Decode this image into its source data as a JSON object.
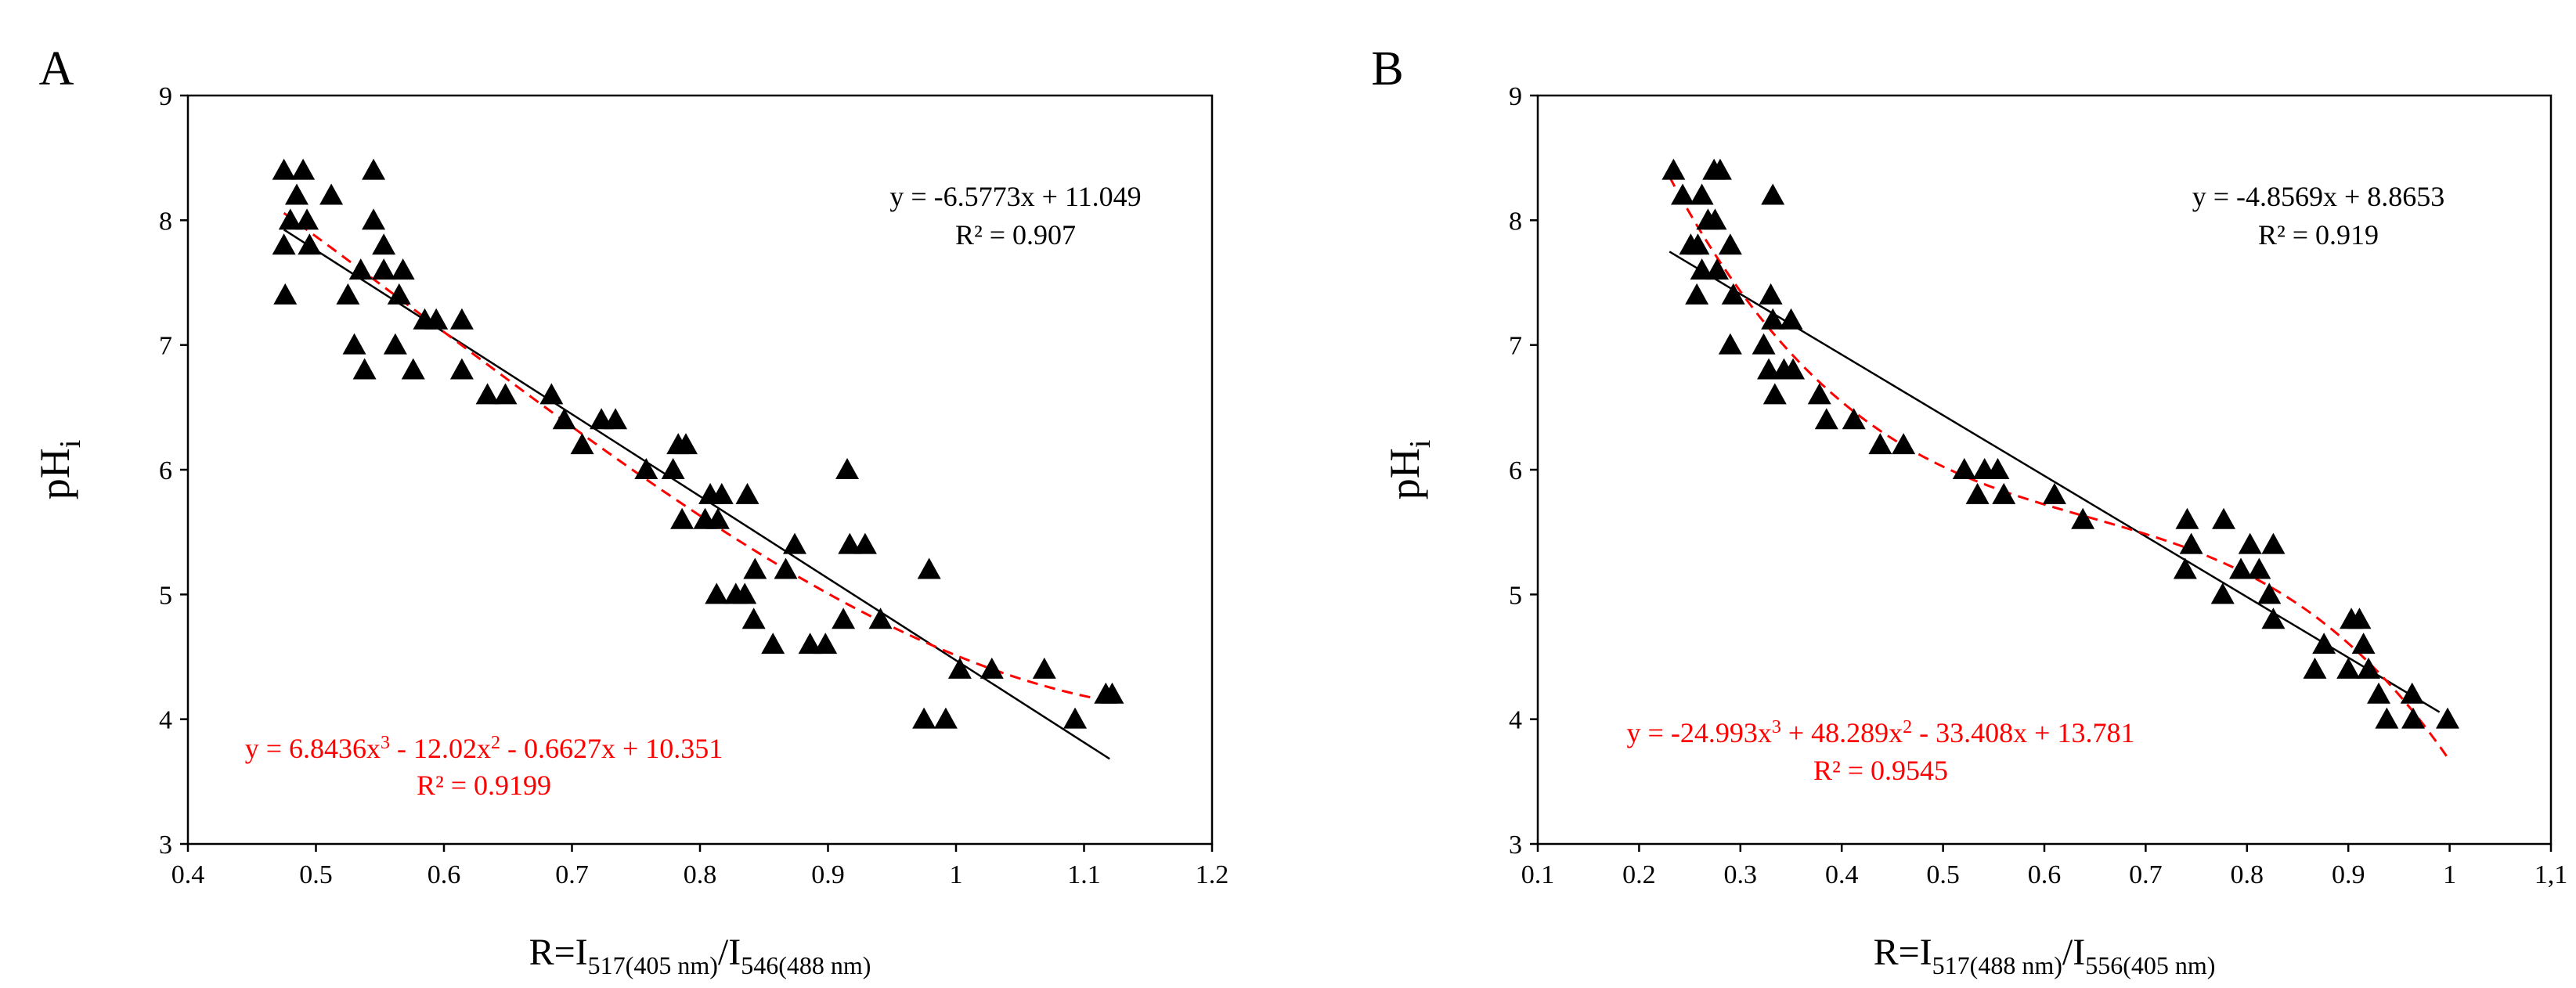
{
  "chart_data": [
    {
      "type": "scatter",
      "panel_label": "A",
      "ylabel": "pH",
      "ylabel_sub": "i",
      "xlabel_parts": [
        "R=I",
        "517(405 nm)",
        "/I",
        "546(488 nm)"
      ],
      "xlim": [
        0.4,
        1.2
      ],
      "ylim": [
        3,
        9
      ],
      "x_ticks": [
        "0.4",
        "0.5",
        "0.6",
        "0.7",
        "0.8",
        "0.9",
        "1",
        "1.1",
        "1.2"
      ],
      "y_ticks": [
        "3",
        "4",
        "5",
        "6",
        "7",
        "8",
        "9"
      ],
      "points": [
        [
          0.475,
          8.4
        ],
        [
          0.49,
          8.4
        ],
        [
          0.545,
          8.4
        ],
        [
          0.485,
          8.2
        ],
        [
          0.512,
          8.2
        ],
        [
          0.48,
          8.0
        ],
        [
          0.493,
          8.0
        ],
        [
          0.545,
          8.0
        ],
        [
          0.475,
          7.8
        ],
        [
          0.495,
          7.8
        ],
        [
          0.553,
          7.8
        ],
        [
          0.535,
          7.6
        ],
        [
          0.553,
          7.6
        ],
        [
          0.568,
          7.6
        ],
        [
          0.476,
          7.4
        ],
        [
          0.525,
          7.4
        ],
        [
          0.565,
          7.4
        ],
        [
          0.585,
          7.2
        ],
        [
          0.594,
          7.2
        ],
        [
          0.614,
          7.2
        ],
        [
          0.53,
          7.0
        ],
        [
          0.562,
          7.0
        ],
        [
          0.538,
          6.8
        ],
        [
          0.576,
          6.8
        ],
        [
          0.614,
          6.8
        ],
        [
          0.634,
          6.6
        ],
        [
          0.648,
          6.6
        ],
        [
          0.684,
          6.6
        ],
        [
          0.694,
          6.4
        ],
        [
          0.723,
          6.4
        ],
        [
          0.734,
          6.4
        ],
        [
          0.708,
          6.2
        ],
        [
          0.783,
          6.2
        ],
        [
          0.789,
          6.2
        ],
        [
          0.758,
          6.0
        ],
        [
          0.779,
          6.0
        ],
        [
          0.915,
          6.0
        ],
        [
          0.808,
          5.8
        ],
        [
          0.817,
          5.8
        ],
        [
          0.837,
          5.8
        ],
        [
          0.786,
          5.6
        ],
        [
          0.804,
          5.6
        ],
        [
          0.814,
          5.6
        ],
        [
          0.874,
          5.4
        ],
        [
          0.917,
          5.4
        ],
        [
          0.929,
          5.4
        ],
        [
          0.867,
          5.2
        ],
        [
          0.843,
          5.2
        ],
        [
          0.979,
          5.2
        ],
        [
          0.813,
          5.0
        ],
        [
          0.828,
          5.0
        ],
        [
          0.835,
          5.0
        ],
        [
          0.842,
          4.8
        ],
        [
          0.912,
          4.8
        ],
        [
          0.941,
          4.8
        ],
        [
          0.857,
          4.6
        ],
        [
          0.886,
          4.6
        ],
        [
          0.898,
          4.6
        ],
        [
          1.003,
          4.4
        ],
        [
          1.028,
          4.4
        ],
        [
          1.069,
          4.4
        ],
        [
          1.117,
          4.2
        ],
        [
          1.122,
          4.2
        ],
        [
          0.975,
          4.0
        ],
        [
          0.992,
          4.0
        ],
        [
          1.093,
          4.0
        ]
      ],
      "linear_fit": {
        "slope": -6.5773,
        "intercept": 11.049,
        "x_range": [
          0.475,
          1.12
        ],
        "equation": "y = -6.5773x + 11.049",
        "r2_label": "R² = 0.907",
        "color": "#000000"
      },
      "cubic_fit": {
        "coefficients": [
          6.8436,
          -12.02,
          -0.6627,
          10.351
        ],
        "x_range": [
          0.475,
          1.12
        ],
        "equation_parts": [
          "y = 6.8436x",
          "3",
          " - 12.02x",
          "2",
          " - 0.6627x + 10.351"
        ],
        "r2_label": "R² = 0.9199",
        "color": "#ff0000"
      }
    },
    {
      "type": "scatter",
      "panel_label": "B",
      "ylabel": "pH",
      "ylabel_sub": "i",
      "xlabel_parts": [
        "R=I",
        "517(488 nm)",
        "/I",
        "556(405 nm)"
      ],
      "xlim": [
        0.1,
        1.1
      ],
      "ylim": [
        3,
        9
      ],
      "x_ticks": [
        "0.1",
        "0.2",
        "0.3",
        "0.4",
        "0.5",
        "0.6",
        "0.7",
        "0.8",
        "0.9",
        "1",
        "1,1"
      ],
      "y_ticks": [
        "3",
        "4",
        "5",
        "6",
        "7",
        "8",
        "9"
      ],
      "points": [
        [
          0.234,
          8.4
        ],
        [
          0.274,
          8.4
        ],
        [
          0.28,
          8.4
        ],
        [
          0.243,
          8.2
        ],
        [
          0.262,
          8.2
        ],
        [
          0.332,
          8.2
        ],
        [
          0.268,
          8.0
        ],
        [
          0.275,
          8.0
        ],
        [
          0.251,
          7.8
        ],
        [
          0.258,
          7.8
        ],
        [
          0.29,
          7.8
        ],
        [
          0.262,
          7.6
        ],
        [
          0.277,
          7.6
        ],
        [
          0.257,
          7.4
        ],
        [
          0.293,
          7.4
        ],
        [
          0.33,
          7.4
        ],
        [
          0.332,
          7.2
        ],
        [
          0.35,
          7.2
        ],
        [
          0.29,
          7.0
        ],
        [
          0.323,
          7.0
        ],
        [
          0.328,
          6.8
        ],
        [
          0.343,
          6.8
        ],
        [
          0.352,
          6.8
        ],
        [
          0.334,
          6.6
        ],
        [
          0.378,
          6.6
        ],
        [
          0.385,
          6.4
        ],
        [
          0.412,
          6.4
        ],
        [
          0.438,
          6.2
        ],
        [
          0.461,
          6.2
        ],
        [
          0.521,
          6.0
        ],
        [
          0.541,
          6.0
        ],
        [
          0.554,
          6.0
        ],
        [
          0.534,
          5.8
        ],
        [
          0.56,
          5.8
        ],
        [
          0.61,
          5.8
        ],
        [
          0.638,
          5.6
        ],
        [
          0.741,
          5.6
        ],
        [
          0.777,
          5.6
        ],
        [
          0.745,
          5.4
        ],
        [
          0.803,
          5.4
        ],
        [
          0.826,
          5.4
        ],
        [
          0.739,
          5.2
        ],
        [
          0.794,
          5.2
        ],
        [
          0.812,
          5.2
        ],
        [
          0.776,
          5.0
        ],
        [
          0.822,
          5.0
        ],
        [
          0.826,
          4.8
        ],
        [
          0.903,
          4.8
        ],
        [
          0.911,
          4.8
        ],
        [
          0.876,
          4.6
        ],
        [
          0.915,
          4.6
        ],
        [
          0.867,
          4.4
        ],
        [
          0.9,
          4.4
        ],
        [
          0.92,
          4.4
        ],
        [
          0.93,
          4.2
        ],
        [
          0.963,
          4.2
        ],
        [
          0.938,
          4.0
        ],
        [
          0.964,
          4.0
        ],
        [
          0.998,
          4.0
        ]
      ],
      "linear_fit": {
        "slope": -4.8569,
        "intercept": 8.8653,
        "x_range": [
          0.23,
          0.99
        ],
        "equation": "y = -4.8569x + 8.8653",
        "r2_label": "R² = 0.919",
        "color": "#000000"
      },
      "cubic_fit": {
        "coefficients": [
          -24.993,
          48.289,
          -33.408,
          13.781
        ],
        "x_range": [
          0.23,
          1.0
        ],
        "equation_parts": [
          "y = -24.993x",
          "3",
          " + 48.289x",
          "2",
          " - 33.408x + 13.781"
        ],
        "r2_label": "R² = 0.9545",
        "color": "#ff0000"
      }
    }
  ]
}
